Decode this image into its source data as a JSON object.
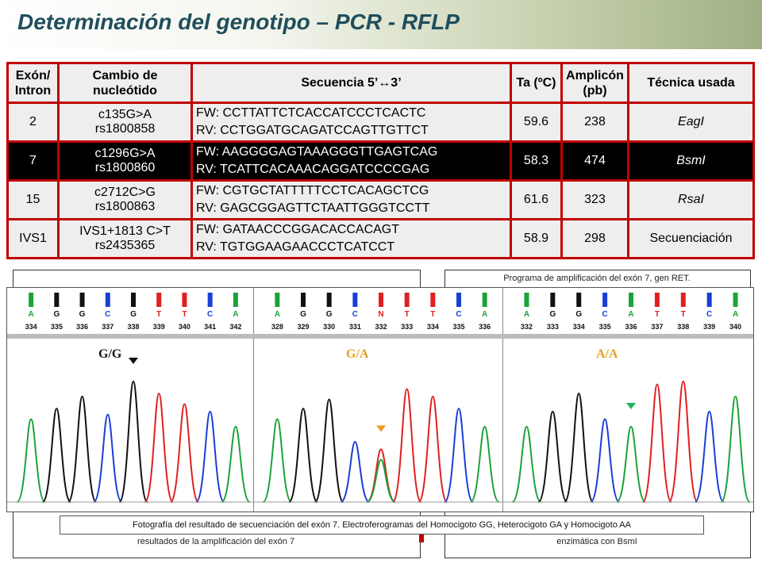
{
  "slide": {
    "title": "Determinación del genotipo – PCR - RFLP"
  },
  "table": {
    "headers": [
      "Exón/ Intron",
      "Cambio de nucleótido",
      "Secuencia 5’↔3’",
      "Ta (ºC)",
      "Amplicón (pb)",
      "Técnica usada"
    ],
    "rows": [
      {
        "exon": "2",
        "change1": "c135G>A",
        "change2": "rs1800858",
        "fw": "FW: CCTTATTCTCACCATCCCTCACTC",
        "rv": "RV: CCTGGATGCAGATCCAGTTGTTCT",
        "ta": "59.6",
        "amplicon": "238",
        "tech": "EagI"
      },
      {
        "exon": "7",
        "change1": "c1296G>A",
        "change2": "rs1800860",
        "fw": "FW: AAGGGGAGTAAAGGGTTGAGTCAG",
        "rv": "RV: TCATTCACAAACAGGATCCCCGAG",
        "ta": "58.3",
        "amplicon": "474",
        "tech": "BsmI"
      },
      {
        "exon": "15",
        "change1": "c2712C>G",
        "change2": "rs1800863",
        "fw": "FW: CGTGCTATTTTTCCTCACAGCTCG",
        "rv": "RV: GAGCGGAGTTCTAATTGGGTCCTT",
        "ta": "61.6",
        "amplicon": "323",
        "tech": "RsaI"
      },
      {
        "exon": "IVS1",
        "change1": "IVS1+1813 C>T",
        "change2": "rs2435365",
        "fw": "FW: GATAACCCGGACACCACAGT",
        "rv": "RV: TGTGGAAGAACCCTCATCCT",
        "ta": "58.9",
        "amplicon": "298",
        "tech": "Secuenciación"
      }
    ]
  },
  "background_captions": {
    "right_top": "Programa de amplificación del exón 7, gen RET.",
    "left_bottom": "resultados de la amplificación del exón 7",
    "right_bottom": "enzimática con BsmI"
  },
  "electropherograms": {
    "panels": [
      {
        "genotype": "G/G",
        "genotype_color": "#111111",
        "bases": [
          "A",
          "G",
          "G",
          "C",
          "G",
          "T",
          "T",
          "C",
          "A"
        ],
        "positions": [
          "334",
          "335",
          "336",
          "337",
          "338",
          "339",
          "340",
          "341",
          "342"
        ],
        "arrow_color": "#111111"
      },
      {
        "genotype": "G/A",
        "genotype_color": "#e3a023",
        "bases": [
          "A",
          "G",
          "G",
          "C",
          "N",
          "T",
          "T",
          "C",
          "A"
        ],
        "positions": [
          "328",
          "329",
          "330",
          "331",
          "332",
          "333",
          "334",
          "335",
          "336"
        ],
        "arrow_color": "#f29a1f"
      },
      {
        "genotype": "A/A",
        "genotype_color": "#e3a023",
        "bases": [
          "A",
          "G",
          "G",
          "C",
          "A",
          "T",
          "T",
          "C",
          "A"
        ],
        "positions": [
          "332",
          "333",
          "334",
          "335",
          "336",
          "337",
          "338",
          "339",
          "340"
        ],
        "arrow_color": "#20b55a"
      }
    ],
    "base_colors": {
      "A": "#1aa33a",
      "G": "#111111",
      "C": "#1a3fd6",
      "T": "#e02020",
      "N": "#e02020"
    },
    "caption": "Fotografía del resultado de secuenciación del exón 7. Electroferogramas del Homocigoto GG, Heterocigoto GA y Homocigoto AA"
  }
}
